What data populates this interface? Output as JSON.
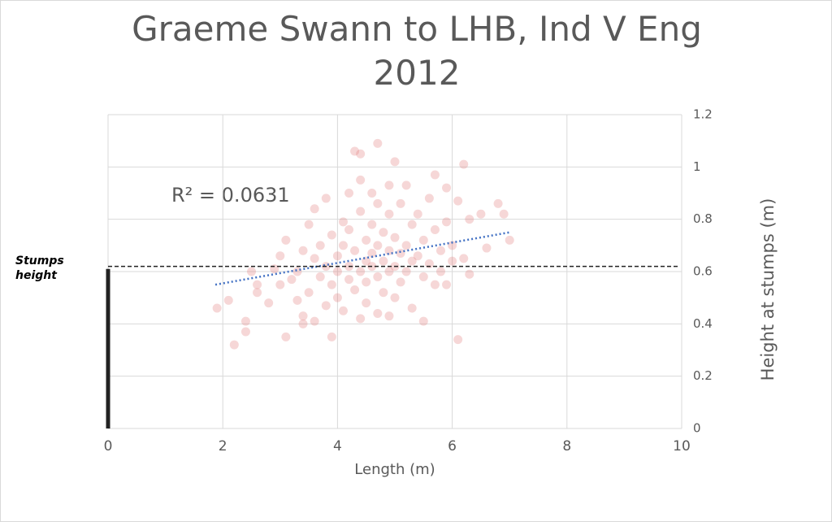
{
  "chart_data": {
    "type": "scatter",
    "title": "Graeme Swann to LHB, Ind V Eng 2012",
    "xlabel": "Length (m)",
    "ylabel": "Height at stumps (m)",
    "xlim": [
      0,
      10
    ],
    "ylim": [
      0,
      1.2
    ],
    "xticks": [
      0,
      2,
      4,
      6,
      8,
      10
    ],
    "yticks": [
      0,
      0.2,
      0.4,
      0.6,
      0.8,
      1,
      1.2
    ],
    "grid": true,
    "series": [
      {
        "color": "#e07a7a",
        "x": [
          1.9,
          2.1,
          2.2,
          2.4,
          2.4,
          2.5,
          2.6,
          2.6,
          2.8,
          2.9,
          3.0,
          3.0,
          3.1,
          3.1,
          3.2,
          3.3,
          3.3,
          3.4,
          3.4,
          3.4,
          3.5,
          3.5,
          3.6,
          3.6,
          3.6,
          3.7,
          3.7,
          3.8,
          3.8,
          3.8,
          3.9,
          3.9,
          3.9,
          4.0,
          4.0,
          4.0,
          4.1,
          4.1,
          4.1,
          4.2,
          4.2,
          4.2,
          4.2,
          4.3,
          4.3,
          4.3,
          4.4,
          4.4,
          4.4,
          4.4,
          4.4,
          4.5,
          4.5,
          4.5,
          4.5,
          4.6,
          4.6,
          4.6,
          4.6,
          4.7,
          4.7,
          4.7,
          4.7,
          4.7,
          4.8,
          4.8,
          4.8,
          4.9,
          4.9,
          4.9,
          4.9,
          4.9,
          5.0,
          5.0,
          5.0,
          5.0,
          5.1,
          5.1,
          5.1,
          5.2,
          5.2,
          5.2,
          5.3,
          5.3,
          5.3,
          5.4,
          5.4,
          5.5,
          5.5,
          5.5,
          5.6,
          5.6,
          5.7,
          5.7,
          5.7,
          5.8,
          5.8,
          5.9,
          5.9,
          5.9,
          6.0,
          6.0,
          6.1,
          6.1,
          6.2,
          6.2,
          6.3,
          6.3,
          6.5,
          6.6,
          6.8,
          6.9,
          7.0
        ],
        "values": [
          0.46,
          0.49,
          0.32,
          0.41,
          0.37,
          0.6,
          0.55,
          0.52,
          0.48,
          0.61,
          0.66,
          0.55,
          0.35,
          0.72,
          0.57,
          0.6,
          0.49,
          0.43,
          0.4,
          0.68,
          0.78,
          0.52,
          0.65,
          0.84,
          0.41,
          0.58,
          0.7,
          0.47,
          0.62,
          0.88,
          0.35,
          0.55,
          0.74,
          0.6,
          0.66,
          0.5,
          0.79,
          0.7,
          0.45,
          0.9,
          0.62,
          0.57,
          0.76,
          1.06,
          0.68,
          0.53,
          1.05,
          0.95,
          0.83,
          0.6,
          0.42,
          0.72,
          0.64,
          0.56,
          0.48,
          0.9,
          0.78,
          0.67,
          0.62,
          1.09,
          0.86,
          0.7,
          0.58,
          0.44,
          0.75,
          0.64,
          0.52,
          0.93,
          0.82,
          0.68,
          0.6,
          0.43,
          1.02,
          0.73,
          0.62,
          0.5,
          0.86,
          0.67,
          0.56,
          0.93,
          0.7,
          0.6,
          0.78,
          0.64,
          0.46,
          0.82,
          0.66,
          0.72,
          0.58,
          0.41,
          0.88,
          0.63,
          0.97,
          0.76,
          0.55,
          0.68,
          0.6,
          0.92,
          0.79,
          0.55,
          0.7,
          0.64,
          0.87,
          0.34,
          1.01,
          0.65,
          0.8,
          0.59,
          0.82,
          0.69,
          0.86,
          0.82,
          0.72
        ]
      }
    ],
    "trendline": {
      "x": [
        1.87,
        7.0
      ],
      "y": [
        0.55,
        0.75
      ],
      "color": "#4472c4",
      "annotation": "R² = 0.0631"
    },
    "reference_line": {
      "y": 0.62,
      "label_lines": [
        "Stumps",
        "height"
      ],
      "bar_height": 0.61
    }
  }
}
